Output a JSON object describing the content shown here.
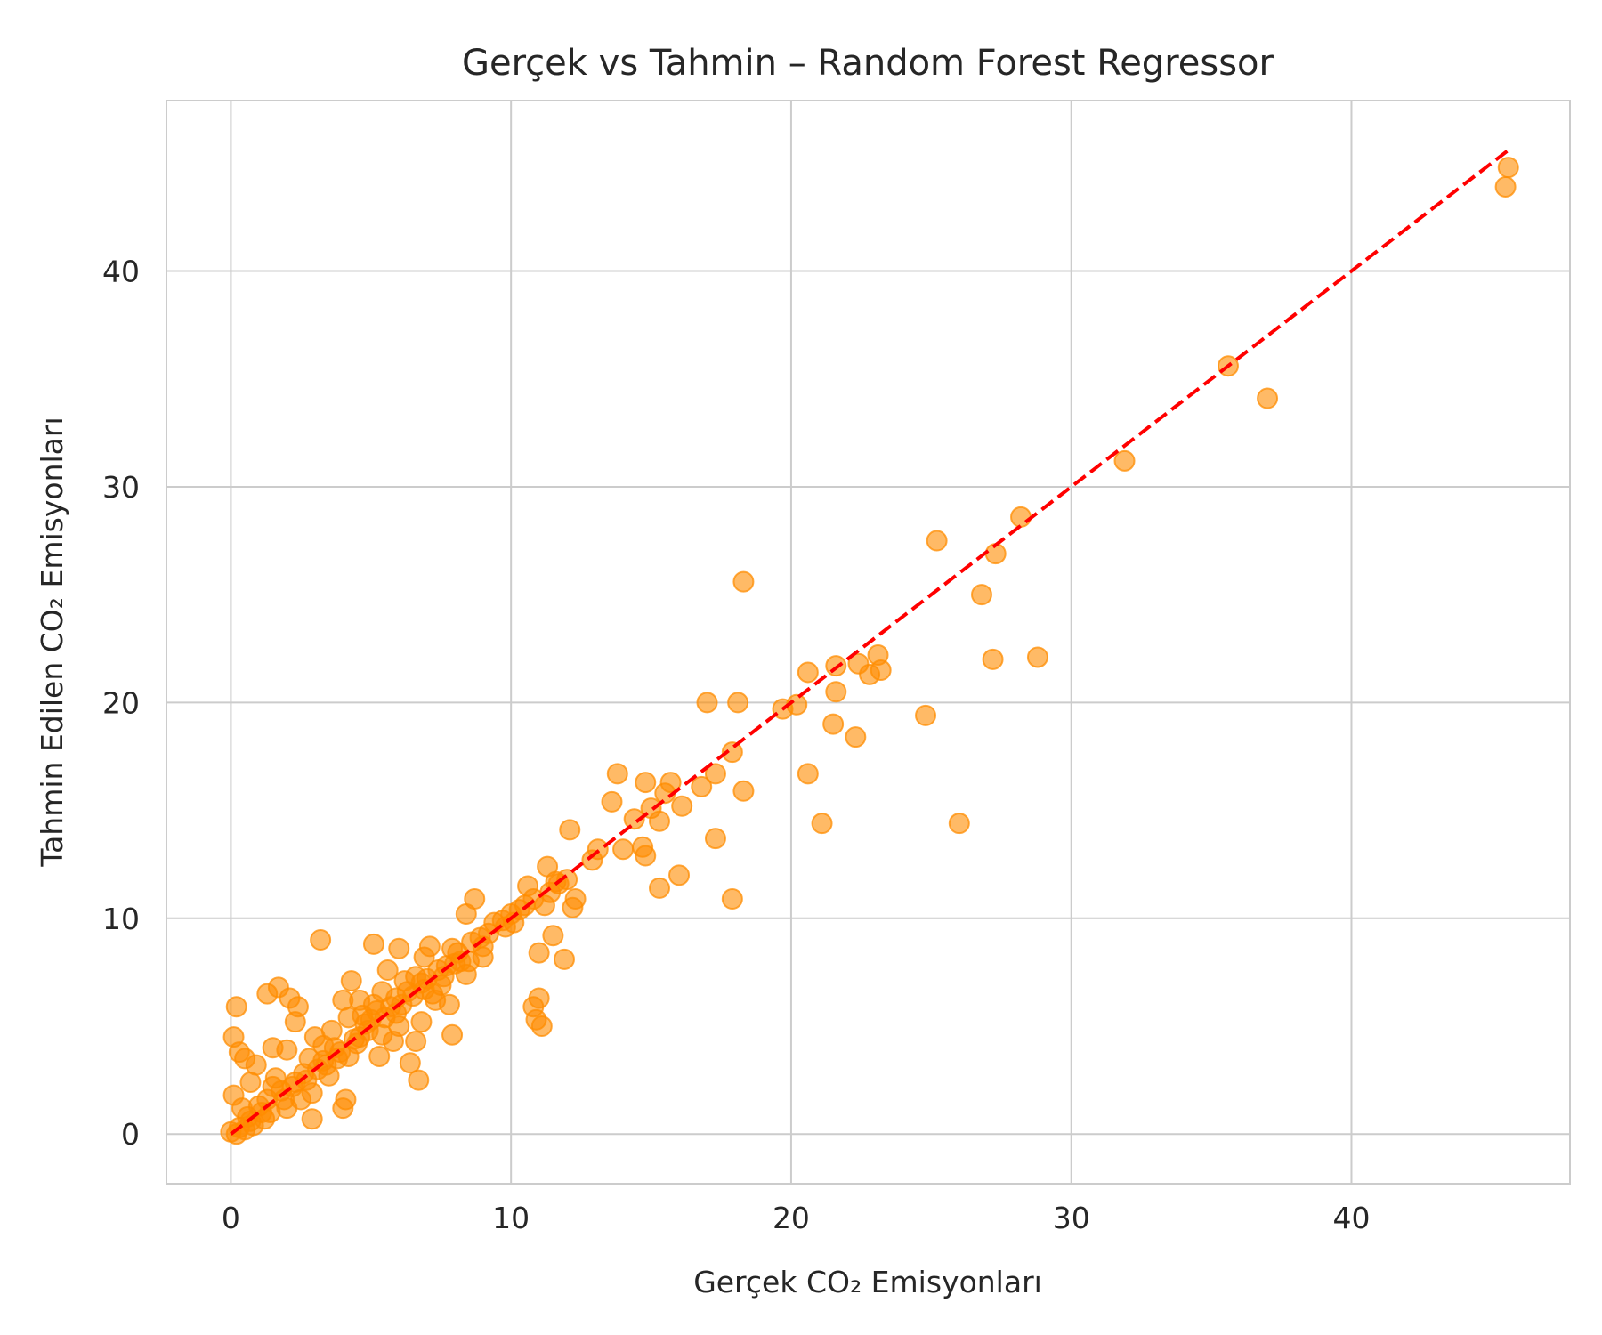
{
  "chart_data": {
    "type": "scatter",
    "title": "Gerçek vs Tahmin – Random Forest Regressor",
    "xlabel": "Gerçek CO₂ Emisyonları",
    "ylabel": "Tahmin Edilen CO₂ Emisyonları",
    "xlim": [
      -2.3,
      47.8
    ],
    "ylim": [
      -2.3,
      47.9
    ],
    "xticks": [
      0,
      10,
      20,
      30,
      40
    ],
    "yticks": [
      0,
      10,
      20,
      30,
      40
    ],
    "grid": true,
    "colors": {
      "points": "#ff8c00",
      "reference_line": "#ff0000",
      "grid": "#cccccc",
      "spine": "#cccccc",
      "text": "#262626"
    },
    "reference_line": {
      "style": "dashed",
      "from": [
        0,
        0
      ],
      "to": [
        45.6,
        45.6
      ]
    },
    "points": [
      [
        45.6,
        44.8
      ],
      [
        45.5,
        43.9
      ],
      [
        35.6,
        35.6
      ],
      [
        37.0,
        34.1
      ],
      [
        31.9,
        31.2
      ],
      [
        28.2,
        28.6
      ],
      [
        25.2,
        27.5
      ],
      [
        27.3,
        26.9
      ],
      [
        26.8,
        25.0
      ],
      [
        18.3,
        25.6
      ],
      [
        28.8,
        22.1
      ],
      [
        27.2,
        22.0
      ],
      [
        23.1,
        22.2
      ],
      [
        23.2,
        21.5
      ],
      [
        22.8,
        21.3
      ],
      [
        22.4,
        21.8
      ],
      [
        21.6,
        21.7
      ],
      [
        21.6,
        20.5
      ],
      [
        20.6,
        21.4
      ],
      [
        21.5,
        19.0
      ],
      [
        22.3,
        18.4
      ],
      [
        24.8,
        19.4
      ],
      [
        20.2,
        19.9
      ],
      [
        19.7,
        19.7
      ],
      [
        18.1,
        20.0
      ],
      [
        17.0,
        20.0
      ],
      [
        17.9,
        17.7
      ],
      [
        20.6,
        16.7
      ],
      [
        18.3,
        15.9
      ],
      [
        21.1,
        14.4
      ],
      [
        26.0,
        14.4
      ],
      [
        17.3,
        16.7
      ],
      [
        16.8,
        16.1
      ],
      [
        15.7,
        16.3
      ],
      [
        16.1,
        15.2
      ],
      [
        15.5,
        15.8
      ],
      [
        15.0,
        15.1
      ],
      [
        14.8,
        16.3
      ],
      [
        13.8,
        16.7
      ],
      [
        13.6,
        15.4
      ],
      [
        14.4,
        14.6
      ],
      [
        15.3,
        14.5
      ],
      [
        14.7,
        13.3
      ],
      [
        14.8,
        12.9
      ],
      [
        14.0,
        13.2
      ],
      [
        13.1,
        13.2
      ],
      [
        12.9,
        12.7
      ],
      [
        17.3,
        13.7
      ],
      [
        16.0,
        12.0
      ],
      [
        17.9,
        10.9
      ],
      [
        15.3,
        11.4
      ],
      [
        12.1,
        14.1
      ],
      [
        12.3,
        10.9
      ],
      [
        12.2,
        10.5
      ],
      [
        11.6,
        11.7
      ],
      [
        11.3,
        12.4
      ],
      [
        11.2,
        10.6
      ],
      [
        11.5,
        9.2
      ],
      [
        11.0,
        8.4
      ],
      [
        11.9,
        8.1
      ],
      [
        11.0,
        6.3
      ],
      [
        10.8,
        5.9
      ],
      [
        10.9,
        5.3
      ],
      [
        11.1,
        5.0
      ],
      [
        10.6,
        11.5
      ],
      [
        10.3,
        10.4
      ],
      [
        10.1,
        9.8
      ],
      [
        9.8,
        9.6
      ],
      [
        9.4,
        9.8
      ],
      [
        8.9,
        9.1
      ],
      [
        9.0,
        8.2
      ],
      [
        8.7,
        10.9
      ],
      [
        8.4,
        10.2
      ],
      [
        8.1,
        8.4
      ],
      [
        8.4,
        7.4
      ],
      [
        7.9,
        8.6
      ],
      [
        7.7,
        7.8
      ],
      [
        7.5,
        6.9
      ],
      [
        7.8,
        6.0
      ],
      [
        7.9,
        4.6
      ],
      [
        7.1,
        8.7
      ],
      [
        6.9,
        8.2
      ],
      [
        6.6,
        7.3
      ],
      [
        6.9,
        6.7
      ],
      [
        7.3,
        6.2
      ],
      [
        6.8,
        5.2
      ],
      [
        6.6,
        4.3
      ],
      [
        6.4,
        3.3
      ],
      [
        6.7,
        2.5
      ],
      [
        6.0,
        8.6
      ],
      [
        5.6,
        7.6
      ],
      [
        5.1,
        8.8
      ],
      [
        5.4,
        6.6
      ],
      [
        5.9,
        6.3
      ],
      [
        5.5,
        5.4
      ],
      [
        5.8,
        4.3
      ],
      [
        5.3,
        3.6
      ],
      [
        4.9,
        4.8
      ],
      [
        4.6,
        6.2
      ],
      [
        4.3,
        7.1
      ],
      [
        4.0,
        6.2
      ],
      [
        4.2,
        5.4
      ],
      [
        4.4,
        4.4
      ],
      [
        3.9,
        3.8
      ],
      [
        4.1,
        1.6
      ],
      [
        4.0,
        1.2
      ],
      [
        3.6,
        4.8
      ],
      [
        3.2,
        9.0
      ],
      [
        3.3,
        3.4
      ],
      [
        3.0,
        4.5
      ],
      [
        2.7,
        2.5
      ],
      [
        2.9,
        1.9
      ],
      [
        2.9,
        0.7
      ],
      [
        2.4,
        5.9
      ],
      [
        2.1,
        6.3
      ],
      [
        2.3,
        5.2
      ],
      [
        2.0,
        3.9
      ],
      [
        2.2,
        2.2
      ],
      [
        2.5,
        1.6
      ],
      [
        1.7,
        6.8
      ],
      [
        1.3,
        6.5
      ],
      [
        1.5,
        4.0
      ],
      [
        1.6,
        2.6
      ],
      [
        1.3,
        1.6
      ],
      [
        1.4,
        1.0
      ],
      [
        1.2,
        0.7
      ],
      [
        0.9,
        3.2
      ],
      [
        0.7,
        2.4
      ],
      [
        0.5,
        3.5
      ],
      [
        0.3,
        3.8
      ],
      [
        0.1,
        4.5
      ],
      [
        0.2,
        5.9
      ],
      [
        0.1,
        1.8
      ],
      [
        0.4,
        1.2
      ],
      [
        0.6,
        0.8
      ],
      [
        0.3,
        0.3
      ],
      [
        0.0,
        0.1
      ],
      [
        0.2,
        0.0
      ],
      [
        0.5,
        0.2
      ],
      [
        0.8,
        0.4
      ],
      [
        1.0,
        1.3
      ],
      [
        1.8,
        2.0
      ],
      [
        2.6,
        2.8
      ],
      [
        3.4,
        3.2
      ],
      [
        3.7,
        4.0
      ],
      [
        4.6,
        4.5
      ],
      [
        5.0,
        5.3
      ],
      [
        5.2,
        5.7
      ],
      [
        6.1,
        6.0
      ],
      [
        6.3,
        6.6
      ],
      [
        7.0,
        7.2
      ],
      [
        7.4,
        7.6
      ],
      [
        8.2,
        8.0
      ],
      [
        8.6,
        8.9
      ],
      [
        9.2,
        9.3
      ],
      [
        9.7,
        9.9
      ],
      [
        10.0,
        10.2
      ],
      [
        10.5,
        10.6
      ],
      [
        11.4,
        11.2
      ],
      [
        12.0,
        11.8
      ],
      [
        3.8,
        3.5
      ],
      [
        4.8,
        5.1
      ],
      [
        5.7,
        5.9
      ],
      [
        6.5,
        6.4
      ],
      [
        7.6,
        7.3
      ],
      [
        2.3,
        2.4
      ],
      [
        1.9,
        1.6
      ],
      [
        3.1,
        3.0
      ],
      [
        1.1,
        1.0
      ],
      [
        0.7,
        0.6
      ],
      [
        4.5,
        4.2
      ],
      [
        5.9,
        5.6
      ],
      [
        6.8,
        7.0
      ],
      [
        8.0,
        7.9
      ],
      [
        9.0,
        8.7
      ],
      [
        10.8,
        10.9
      ],
      [
        11.7,
        11.6
      ],
      [
        2.8,
        3.5
      ],
      [
        3.5,
        2.7
      ],
      [
        4.7,
        5.5
      ],
      [
        5.4,
        4.6
      ],
      [
        6.2,
        7.1
      ],
      [
        7.2,
        6.5
      ],
      [
        8.5,
        8.0
      ],
      [
        1.5,
        2.2
      ],
      [
        2.0,
        1.2
      ],
      [
        3.3,
        4.1
      ],
      [
        4.2,
        3.6
      ],
      [
        5.1,
        6.0
      ],
      [
        6.0,
        5.0
      ]
    ]
  }
}
